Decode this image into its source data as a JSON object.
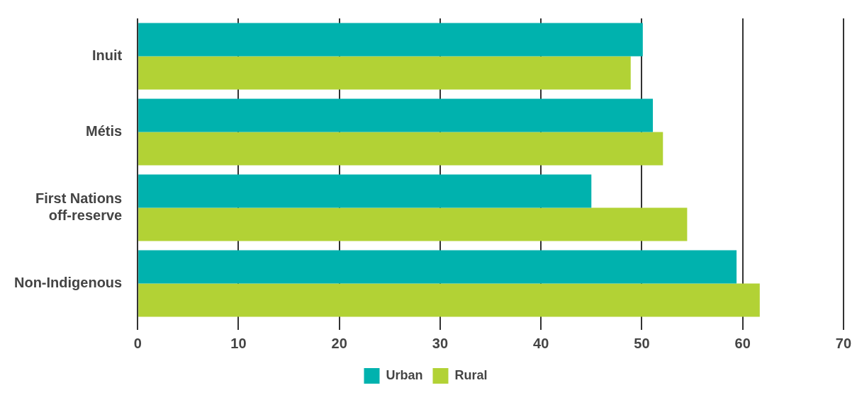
{
  "chart_data": {
    "type": "bar",
    "orientation": "horizontal",
    "categories": [
      "Inuit",
      "Métis",
      "First Nations off-reserve",
      "Non-Indigenous"
    ],
    "series": [
      {
        "name": "Urban",
        "color": "#00b2ae",
        "values": [
          50.1,
          51.1,
          45.0,
          59.4
        ]
      },
      {
        "name": "Rural",
        "color": "#b2d235",
        "values": [
          48.9,
          52.1,
          54.5,
          61.7
        ]
      }
    ],
    "xlim": [
      0,
      70
    ],
    "xticks": [
      0,
      10,
      20,
      30,
      40,
      50,
      60,
      70
    ],
    "grid": "x",
    "legend": "bottom"
  }
}
